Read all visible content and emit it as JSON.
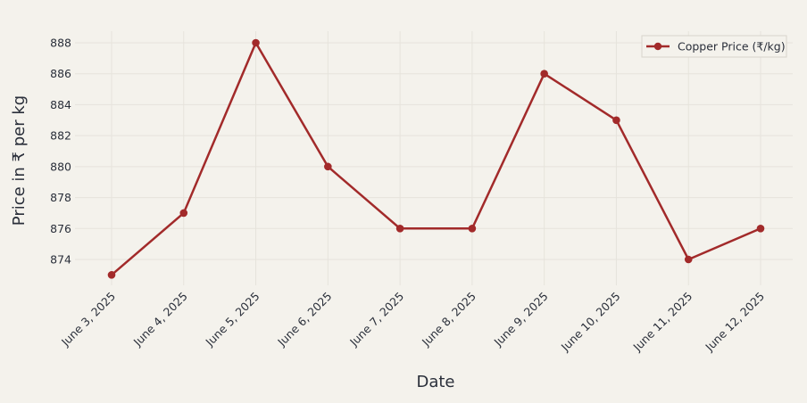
{
  "chart_data": {
    "type": "line",
    "categories": [
      "June 3, 2025",
      "June 4, 2025",
      "June 5, 2025",
      "June 6, 2025",
      "June 7, 2025",
      "June 8, 2025",
      "June 9, 2025",
      "June 10, 2025",
      "June 11, 2025",
      "June 12, 2025"
    ],
    "series": [
      {
        "name": "Copper Price (₹/kg)",
        "values": [
          873,
          877,
          888,
          880,
          876,
          876,
          886,
          883,
          874,
          876
        ],
        "color": "#a22a2a"
      }
    ],
    "xlabel": "Date",
    "ylabel": "Price in ₹ per kg",
    "y_ticks": [
      874,
      876,
      878,
      880,
      882,
      884,
      886,
      888
    ],
    "ylim": [
      872,
      888.7
    ],
    "grid": true,
    "legend_position": "top-right",
    "colors": {
      "background": "#f4f2ec",
      "grid": "#e6e3dc",
      "text": "#2a2f3a",
      "line": "#a22a2a"
    }
  }
}
